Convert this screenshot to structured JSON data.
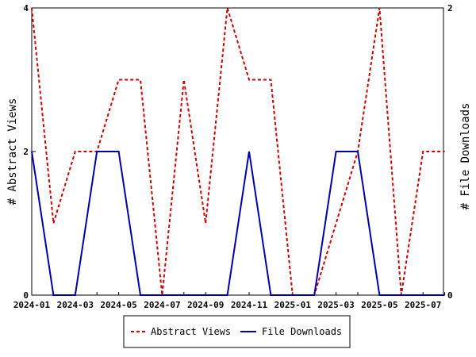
{
  "chart_data": {
    "type": "line",
    "x": [
      "2024-01",
      "2024-02",
      "2024-03",
      "2024-04",
      "2024-05",
      "2024-06",
      "2024-07",
      "2024-08",
      "2024-09",
      "2024-10",
      "2024-11",
      "2024-12",
      "2025-01",
      "2025-02",
      "2025-03",
      "2025-04",
      "2025-05",
      "2025-06",
      "2025-07",
      "2025-08"
    ],
    "x_tick_labels": [
      "2024-01",
      "2024-03",
      "2024-05",
      "2024-07",
      "2024-09",
      "2024-11",
      "2025-01",
      "2025-03",
      "2025-05",
      "2025-07"
    ],
    "series": [
      {
        "name": "Abstract Views",
        "axis": "left",
        "color": "#cc0000",
        "line_style": "dashed",
        "values": [
          4,
          1,
          2,
          2,
          3,
          3,
          0,
          3,
          1,
          4,
          3,
          3,
          0,
          0,
          1,
          2,
          4,
          0,
          2,
          2
        ]
      },
      {
        "name": "File Downloads",
        "axis": "right",
        "color": "#0000aa",
        "line_style": "solid",
        "values": [
          1,
          0,
          0,
          1,
          1,
          0,
          0,
          0,
          0,
          0,
          1,
          0,
          0,
          0,
          1,
          1,
          0,
          0,
          0,
          0
        ]
      }
    ],
    "ylabel_left": "# Abstract Views",
    "ylabel_right": "# File Downloads",
    "ylim_left": [
      0,
      4
    ],
    "ylim_right": [
      0,
      2
    ],
    "y_ticks_left": [
      "0",
      "2",
      "4"
    ],
    "y_ticks_right": [
      "0",
      "2"
    ],
    "grid": false,
    "legend_position": "bottom-center"
  }
}
